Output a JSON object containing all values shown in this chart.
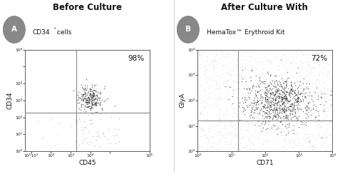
{
  "panel_A": {
    "title": "Before Culture",
    "badge": "A",
    "subtitle_parts": [
      "CD34",
      "+",
      " cells"
    ],
    "xlabel": "CD45",
    "ylabel": "CD34",
    "xlim_log": [
      -0.3,
      6
    ],
    "ylim_log": [
      0,
      6
    ],
    "xtick_pos": [
      0,
      1,
      2,
      3,
      4,
      6
    ],
    "xtick_labels": [
      "10⁰ 10¹",
      "10²",
      "10³",
      "10⁴",
      "",
      "10⁶"
    ],
    "ytick_pos": [
      0,
      1,
      2,
      3,
      4,
      5,
      6
    ],
    "ytick_labels": [
      "10⁰",
      "10¹",
      "10²",
      "10³",
      "10⁴",
      "",
      "10⁶"
    ],
    "gate_x": 2.3,
    "gate_y": 2.3,
    "percent_label": "98%",
    "cluster_x_mean": 3.0,
    "cluster_y_mean": 3.1,
    "cluster_x_std": 0.32,
    "cluster_y_std": 0.38,
    "n_cluster": 240,
    "n_scatter_below": 55,
    "n_scatter_sparse": 15,
    "seed": 42
  },
  "panel_B": {
    "title": "After Culture With",
    "badge": "B",
    "subtitle": "HemaTox™ Erythroid Kit",
    "xlabel": "CD71",
    "ylabel": "GlyA",
    "xlim_log": [
      0,
      4
    ],
    "ylim_log": [
      0,
      4
    ],
    "xtick_pos": [
      0,
      1,
      2,
      3,
      4
    ],
    "xtick_labels": [
      "10⁰",
      "10¹",
      "10²",
      "10³",
      "10⁴"
    ],
    "ytick_pos": [
      0,
      1,
      2,
      3,
      4
    ],
    "ytick_labels": [
      "10⁰",
      "10¹",
      "10²",
      "10³",
      "10⁴"
    ],
    "gate_x": 1.2,
    "gate_y": 1.2,
    "percent_label": "72%",
    "cluster_x_mean": 2.45,
    "cluster_y_mean": 1.95,
    "cluster_x_std": 0.52,
    "cluster_y_std": 0.48,
    "n_cluster": 800,
    "n_scatter_wide": 900,
    "seed": 7
  },
  "bg_color": "#ffffff",
  "dot_dark": "#222222",
  "dot_mid": "#666666",
  "dot_light": "#aaaaaa",
  "gate_color": "#888888",
  "badge_bg": "#888888",
  "badge_fg": "#ffffff",
  "divider_color": "#cccccc"
}
